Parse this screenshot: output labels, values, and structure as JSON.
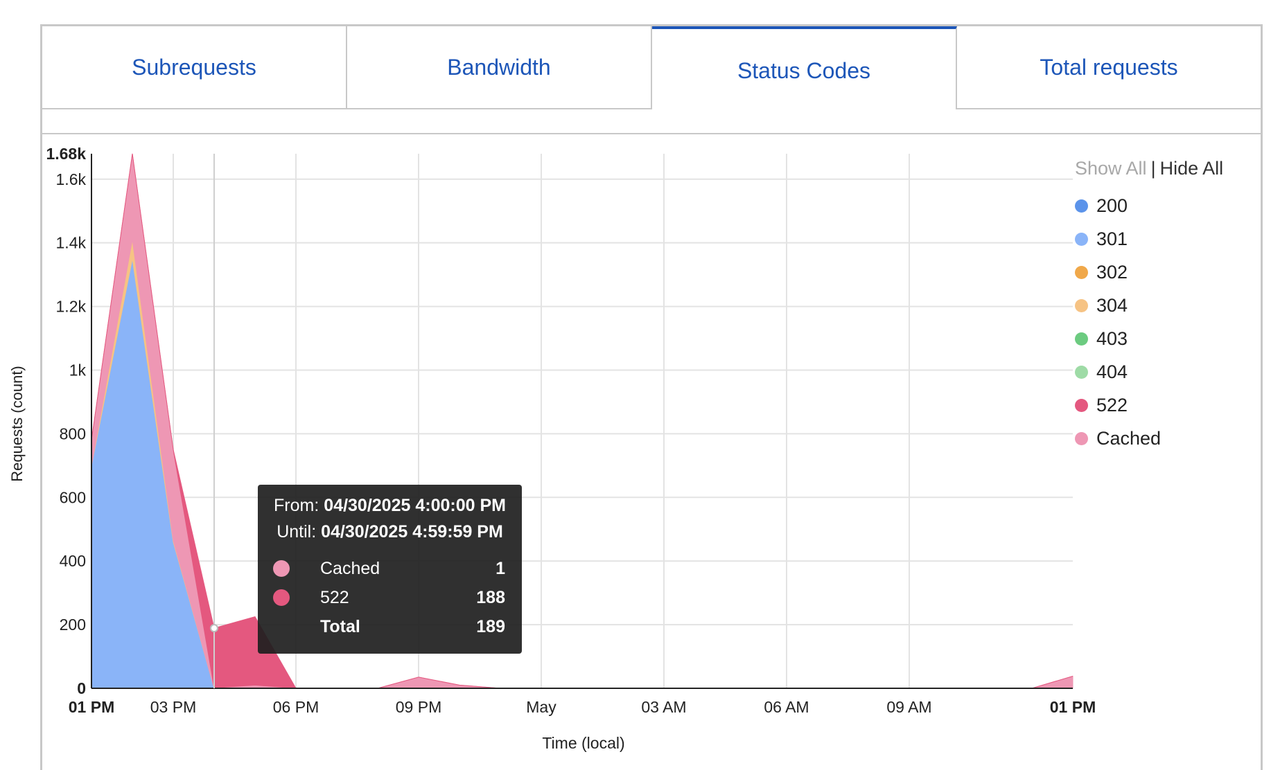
{
  "tabs": [
    {
      "label": "Subrequests",
      "active": false
    },
    {
      "label": "Bandwidth",
      "active": false
    },
    {
      "label": "Status Codes",
      "active": true
    },
    {
      "label": "Total requests",
      "active": false
    }
  ],
  "legend": {
    "show_all": "Show All",
    "separator": "|",
    "hide_all": "Hide All",
    "items": [
      {
        "label": "200",
        "color": "#5b93ea"
      },
      {
        "label": "301",
        "color": "#8ab4f8"
      },
      {
        "label": "302",
        "color": "#f0a84a"
      },
      {
        "label": "304",
        "color": "#f6c384"
      },
      {
        "label": "403",
        "color": "#6ccb80"
      },
      {
        "label": "404",
        "color": "#9edba6"
      },
      {
        "label": "522",
        "color": "#e4587f"
      },
      {
        "label": "Cached",
        "color": "#ee97b4"
      }
    ]
  },
  "tooltip": {
    "from_label": "From:",
    "from_value": "04/30/2025 4:00:00 PM",
    "until_label": "Until:",
    "until_value": "04/30/2025 4:59:59 PM",
    "rows": [
      {
        "label": "Cached",
        "value": "1",
        "color": "#ee97b4"
      },
      {
        "label": "522",
        "value": "188",
        "color": "#e4587f"
      }
    ],
    "total_label": "Total",
    "total_value": "189"
  },
  "chart_data": {
    "type": "area",
    "stacked": true,
    "xlabel": "Time (local)",
    "ylabel": "Requests (count)",
    "ylim": [
      0,
      1680
    ],
    "y_max_label": "1.68k",
    "y_ticks": [
      {
        "value": 0,
        "label": "0"
      },
      {
        "value": 200,
        "label": "200"
      },
      {
        "value": 400,
        "label": "400"
      },
      {
        "value": 600,
        "label": "600"
      },
      {
        "value": 800,
        "label": "800"
      },
      {
        "value": 1000,
        "label": "1k"
      },
      {
        "value": 1200,
        "label": "1.2k"
      },
      {
        "value": 1400,
        "label": "1.4k"
      },
      {
        "value": 1600,
        "label": "1.6k"
      }
    ],
    "x_ticks": [
      {
        "label": "01 PM",
        "bold": true
      },
      {
        "label": "03 PM",
        "bold": false
      },
      {
        "label": "06 PM",
        "bold": false
      },
      {
        "label": "09 PM",
        "bold": false
      },
      {
        "label": "May",
        "bold": false
      },
      {
        "label": "03 AM",
        "bold": false
      },
      {
        "label": "06 AM",
        "bold": false
      },
      {
        "label": "09 AM",
        "bold": false
      },
      {
        "label": "01 PM",
        "bold": true
      }
    ],
    "x_hours": [
      0,
      1,
      2,
      3,
      4,
      5,
      6,
      7,
      8,
      9,
      10,
      11,
      12,
      13,
      14,
      15,
      16,
      17,
      18,
      19,
      20,
      21,
      22,
      23,
      24
    ],
    "x_tick_hours": [
      0,
      2,
      5,
      8,
      11,
      14,
      17,
      20,
      24
    ],
    "highlight_hour": 3,
    "series": [
      {
        "name": "301",
        "color": "#8ab4f8",
        "values": [
          700,
          1350,
          460,
          0,
          0,
          0,
          0,
          0,
          0,
          0,
          0,
          0,
          0,
          0,
          0,
          0,
          0,
          0,
          0,
          0,
          0,
          0,
          0,
          0,
          0
        ]
      },
      {
        "name": "304",
        "color": "#f6c384",
        "values": [
          0,
          60,
          5,
          0,
          0,
          0,
          0,
          0,
          0,
          0,
          0,
          0,
          0,
          0,
          0,
          0,
          0,
          0,
          0,
          0,
          0,
          0,
          0,
          0,
          0
        ]
      },
      {
        "name": "Cached",
        "color": "#ee97b4",
        "values": [
          80,
          270,
          285,
          1,
          10,
          0,
          0,
          0,
          35,
          10,
          0,
          0,
          0,
          0,
          0,
          0,
          0,
          0,
          0,
          0,
          0,
          0,
          0,
          0,
          38
        ]
      },
      {
        "name": "522",
        "color": "#e4587f",
        "values": [
          0,
          0,
          0,
          188,
          215,
          0,
          0,
          0,
          0,
          0,
          0,
          0,
          0,
          0,
          0,
          0,
          0,
          0,
          0,
          0,
          0,
          0,
          0,
          0,
          0
        ]
      }
    ]
  }
}
